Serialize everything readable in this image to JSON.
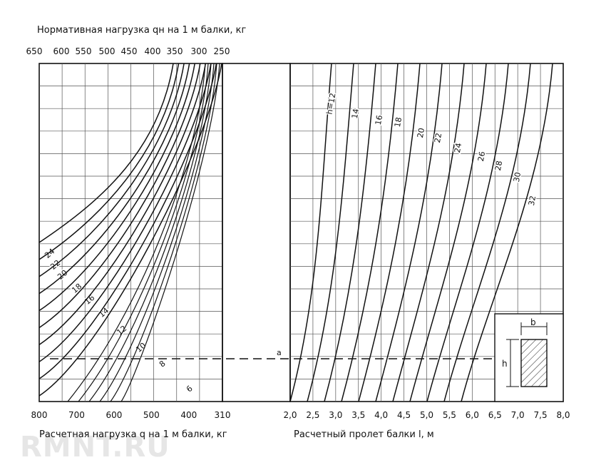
{
  "watermark": "RMNT.RU",
  "chart_data": [
    {
      "type": "line",
      "title": "Нормативная нагрузка qн на 1 м балки, кг",
      "xlabel": "Расчетная нагрузка q на 1 м балки, кг",
      "top_axis_ticks": [
        "650",
        "600",
        "550",
        "500",
        "450",
        "400",
        "350",
        "300",
        "250"
      ],
      "top_axis_values": [
        650,
        600,
        550,
        500,
        450,
        400,
        350,
        300,
        250
      ],
      "bottom_axis_ticks": [
        "800",
        "700",
        "600",
        "500",
        "400",
        "310"
      ],
      "bottom_axis_values": [
        800,
        700,
        600,
        500,
        400,
        310
      ],
      "xlim": [
        800,
        310
      ],
      "grid": true,
      "series": [
        {
          "name": "24",
          "label": "24"
        },
        {
          "name": "22",
          "label": "22"
        },
        {
          "name": "20",
          "label": "20"
        },
        {
          "name": "18",
          "label": "18"
        },
        {
          "name": "16",
          "label": "16"
        },
        {
          "name": "14",
          "label": "14"
        },
        {
          "name": "12",
          "label": "12"
        },
        {
          "name": "10",
          "label": "10"
        },
        {
          "name": "8",
          "label": "8"
        },
        {
          "name": "6",
          "label": "6"
        }
      ]
    },
    {
      "type": "line",
      "xlabel": "Расчетный пролет балки l, м",
      "x_ticks": [
        "2,0",
        "2,5",
        "3,0",
        "3,5",
        "4,0",
        "4,5",
        "5,0",
        "5,5",
        "6,0",
        "6,5",
        "7,0",
        "7,5",
        "8,0"
      ],
      "x_values": [
        2.0,
        2.5,
        3.0,
        3.5,
        4.0,
        4.5,
        5.0,
        5.5,
        6.0,
        6.5,
        7.0,
        7.5,
        8.0
      ],
      "xlim": [
        2.0,
        8.0
      ],
      "grid": true,
      "series": [
        {
          "name": "h=12",
          "label": "h=12"
        },
        {
          "name": "14",
          "label": "14"
        },
        {
          "name": "16",
          "label": "16"
        },
        {
          "name": "18",
          "label": "18"
        },
        {
          "name": "20",
          "label": "20"
        },
        {
          "name": "22",
          "label": "22"
        },
        {
          "name": "24",
          "label": "24"
        },
        {
          "name": "26",
          "label": "26"
        },
        {
          "name": "28",
          "label": "28"
        },
        {
          "name": "30",
          "label": "30"
        },
        {
          "name": "32",
          "label": "32"
        }
      ],
      "annotations": [
        "a"
      ]
    }
  ],
  "inset": {
    "width_label": "b",
    "height_label": "h"
  }
}
